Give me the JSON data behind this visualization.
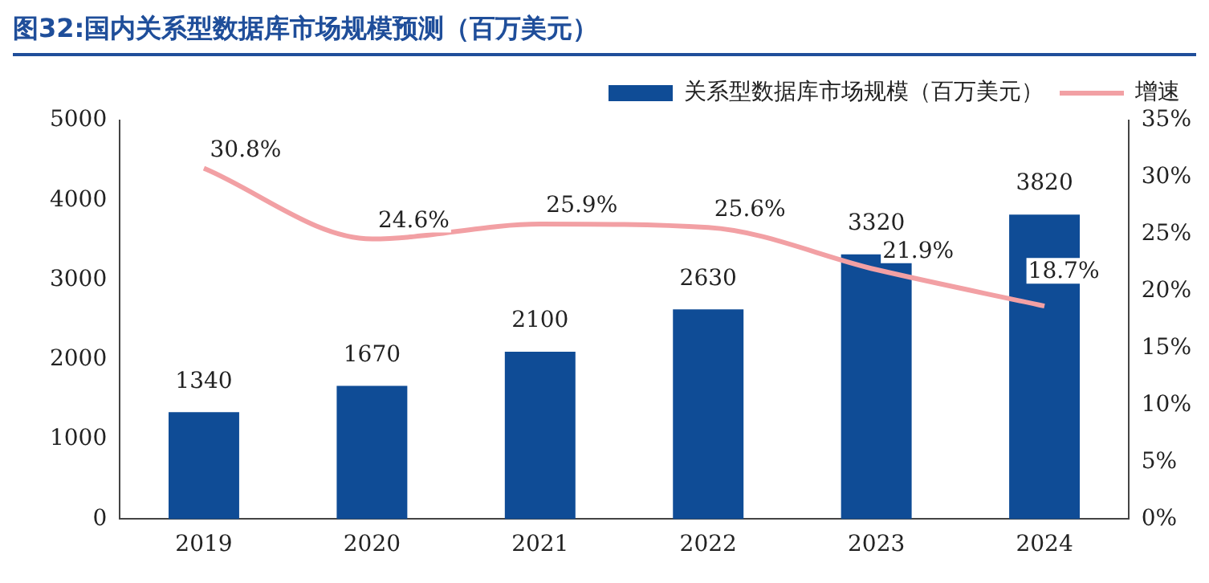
{
  "chart_data": {
    "type": "bar",
    "title": "图32:国内关系型数据库市场规模预测（百万美元）",
    "categories": [
      "2019",
      "2020",
      "2021",
      "2022",
      "2023",
      "2024"
    ],
    "series": [
      {
        "name": "关系型数据库市场规模（百万美元）",
        "color": "#0f4c96",
        "values": [
          1340,
          1670,
          2100,
          2630,
          3320,
          3820
        ],
        "value_labels": [
          "1340",
          "1670",
          "2100",
          "2630",
          "3320",
          "3820"
        ]
      },
      {
        "name": "增速",
        "type": "line",
        "axis": "y2",
        "color": "#f2a0a4",
        "values": [
          30.8,
          24.6,
          25.9,
          25.6,
          21.9,
          18.7
        ],
        "value_labels": [
          "30.8%",
          "24.6%",
          "25.9%",
          "25.6%",
          "21.9%",
          "18.7%"
        ]
      }
    ],
    "ylim": [
      0,
      5000
    ],
    "yticks": [
      0,
      1000,
      2000,
      3000,
      4000,
      5000
    ],
    "y2lim": [
      0,
      35
    ],
    "y2ticks": [
      {
        "value": 0,
        "label": "0%"
      },
      {
        "value": 5,
        "label": "5%"
      },
      {
        "value": 10,
        "label": "10%"
      },
      {
        "value": 15,
        "label": "15%"
      },
      {
        "value": 20,
        "label": "20%"
      },
      {
        "value": 25,
        "label": "25%"
      },
      {
        "value": 30,
        "label": "30%"
      },
      {
        "value": 35,
        "label": "35%"
      }
    ],
    "grid": false,
    "legend": "top right",
    "marker": "none"
  }
}
